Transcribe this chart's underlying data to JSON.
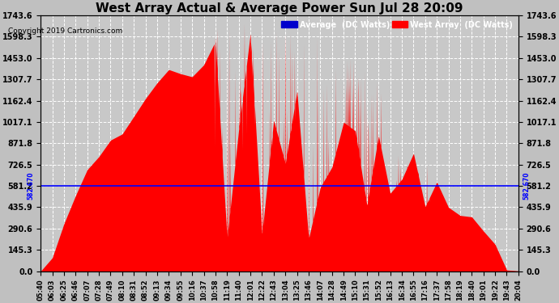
{
  "title": "West Array Actual & Average Power Sun Jul 28 20:09",
  "copyright": "Copyright 2019 Cartronics.com",
  "average_value": 582.67,
  "ymax": 1743.6,
  "yticks": [
    0.0,
    145.3,
    290.6,
    435.9,
    581.2,
    726.5,
    871.8,
    1017.1,
    1162.4,
    1307.7,
    1453.0,
    1598.3,
    1743.6
  ],
  "avg_label": "582.670",
  "legend_avg_label": "Average  (DC Watts)",
  "legend_west_label": "West Array  (DC Watts)",
  "bg_color": "#c0c0c0",
  "plot_bg_color": "#c8c8c8",
  "fill_color": "#ff0000",
  "avg_line_color": "#0000ff",
  "grid_color": "#ffffff",
  "title_color": "#000000",
  "copyright_color": "#000000",
  "fig_width": 6.9,
  "fig_height": 3.75,
  "dpi": 100,
  "time_labels": [
    "05:40",
    "06:03",
    "06:25",
    "06:46",
    "07:07",
    "07:28",
    "07:49",
    "08:10",
    "08:31",
    "08:52",
    "09:13",
    "09:34",
    "09:55",
    "10:16",
    "10:37",
    "10:58",
    "11:19",
    "11:40",
    "12:01",
    "12:22",
    "12:43",
    "13:04",
    "13:25",
    "13:46",
    "14:07",
    "14:28",
    "14:49",
    "15:10",
    "15:31",
    "15:52",
    "16:13",
    "16:34",
    "16:55",
    "17:16",
    "17:37",
    "17:58",
    "18:19",
    "18:40",
    "19:01",
    "19:22",
    "19:43",
    "20:04"
  ]
}
